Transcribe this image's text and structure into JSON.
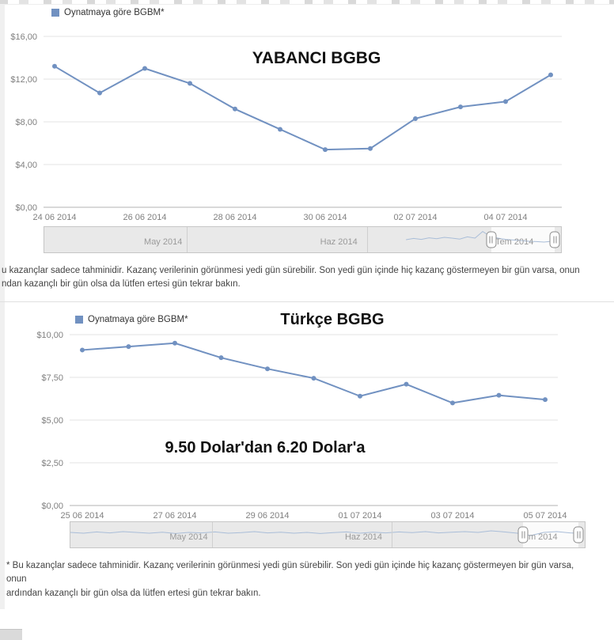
{
  "colors": {
    "line": "#7191c1",
    "grid": "#e3e3e3",
    "axis": "#b3b3b3",
    "tick_text": "#808080",
    "slider_label": "#9a9a9a",
    "spark": "#a9bdd8"
  },
  "sections": [
    {
      "legend_label": "Oynatmaya göre BGBM*",
      "title": "YABANCI BGBG",
      "disclaimer": [
        "u kazançlar sadece tahminidir. Kazanç verilerinin görünmesi yedi gün sürebilir. Son yedi gün içinde hiç kazanç göstermeyen bir gün varsa, onun",
        "ndan kazançlı bir gün olsa da lütfen ertesi gün tekrar bakın."
      ],
      "slider": {
        "months": [
          "May 2014",
          "Haz 2014",
          "Tem 2014"
        ],
        "label_pcts": [
          23,
          57,
          91
        ],
        "divider_pcts": [
          27.5,
          62.5
        ],
        "handle_pcts": [
          86.5,
          98.8
        ],
        "spark_start_pct": 70,
        "spark_values": [
          0.4,
          0.48,
          0.42,
          0.52,
          0.46,
          0.55,
          0.5,
          0.44,
          0.58,
          0.5,
          0.92,
          0.6,
          0.5,
          0.42,
          0.38,
          0.35,
          0.3,
          0.28,
          0.25,
          0.3,
          0.28
        ]
      }
    },
    {
      "legend_label": "Oynatmaya göre BGBM*",
      "title": "Türkçe BGBG",
      "annotation": "9.50 Dolar'dan 6.20 Dolar'a",
      "disclaimer": [
        "* Bu kazançlar sadece tahminidir. Kazanç verilerinin görünmesi yedi gün sürebilir. Son yedi gün içinde hiç kazanç göstermeyen bir gün varsa, onun",
        "ardından kazançlı bir gün olsa da lütfen ertesi gün tekrar bakın."
      ],
      "slider": {
        "months": [
          "May 2014",
          "Haz 2014",
          "Tem 2014"
        ],
        "label_pcts": [
          23,
          57,
          91
        ],
        "divider_pcts": [
          27.5,
          62.5
        ],
        "handle_pcts": [
          88.0,
          98.8
        ],
        "spark_start_pct": 0,
        "spark_values": [
          0.55,
          0.5,
          0.58,
          0.52,
          0.6,
          0.55,
          0.5,
          0.56,
          0.48,
          0.55,
          0.52,
          0.58,
          0.5,
          0.54,
          0.6,
          0.52,
          0.56,
          0.5,
          0.55,
          0.48,
          0.54,
          0.58,
          0.5,
          0.56,
          0.52,
          0.58,
          0.54,
          0.6,
          0.52,
          0.56,
          0.6,
          0.55,
          0.65,
          0.58,
          0.5,
          0.35,
          0.55,
          0.6,
          0.52,
          0.48
        ]
      }
    }
  ],
  "chart_data": [
    {
      "type": "line",
      "title": "YABANCI BGBG",
      "series_name": "Oynatmaya göre BGBM*",
      "categories": [
        "24 06 2014",
        "25 06 2014",
        "26 06 2014",
        "27 06 2014",
        "28 06 2014",
        "29 06 2014",
        "30 06 2014",
        "01 07 2014",
        "02 07 2014",
        "03 07 2014",
        "04 07 2014",
        "05 07 2014"
      ],
      "values": [
        13.2,
        10.7,
        13.0,
        11.6,
        9.2,
        7.3,
        5.4,
        5.5,
        8.3,
        9.4,
        9.9,
        12.4
      ],
      "ylim": [
        0,
        16
      ],
      "y_ticks": [
        "$16,00",
        "$12,00",
        "$8,00",
        "$4,00",
        "$0,00"
      ],
      "x_tick_labels": [
        "24 06 2014",
        "26 06 2014",
        "28 06 2014",
        "30 06 2014",
        "02 07 2014",
        "04 07 2014"
      ],
      "tick_every": 2,
      "grid": true,
      "legend_position": "top-left"
    },
    {
      "type": "line",
      "title": "Türkçe BGBG",
      "series_name": "Oynatmaya göre BGBM*",
      "categories": [
        "25 06 2014",
        "26 06 2014",
        "27 06 2014",
        "28 06 2014",
        "29 06 2014",
        "30 06 2014",
        "01 07 2014",
        "02 07 2014",
        "03 07 2014",
        "04 07 2014",
        "05 07 2014"
      ],
      "values": [
        9.1,
        9.3,
        9.5,
        8.65,
        8.0,
        7.45,
        6.4,
        7.1,
        6.0,
        6.45,
        6.2
      ],
      "ylim": [
        0,
        10
      ],
      "y_ticks": [
        "$10,00",
        "$7,50",
        "$5,00",
        "$2,50",
        "$0,00"
      ],
      "x_tick_labels": [
        "25 06 2014",
        "27 06 2014",
        "29 06 2014",
        "01 07 2014",
        "03 07 2014",
        "05 07 2014"
      ],
      "tick_every": 2,
      "grid": true,
      "legend_position": "top-left",
      "annotations": [
        "9.50 Dolar'dan 6.20 Dolar'a"
      ]
    }
  ]
}
